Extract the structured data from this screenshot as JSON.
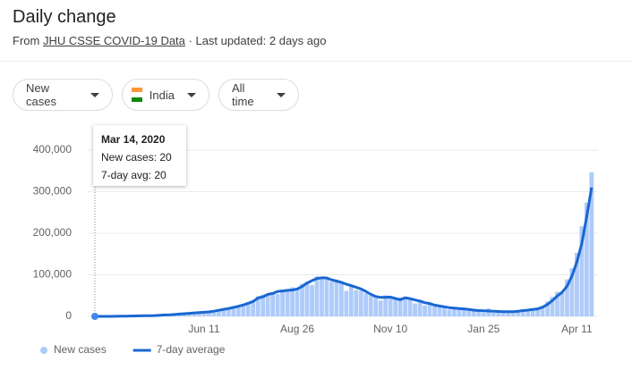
{
  "header": {
    "title": "Daily change",
    "source_prefix": "From",
    "source_link": "JHU CSSE COVID-19 Data",
    "source_suffix": "· Last updated: 2 days ago"
  },
  "controls": [
    "New cases",
    "India",
    "All time"
  ],
  "chart_data": {
    "type": "combo",
    "categories": [
      null,
      null,
      null,
      null,
      null,
      null,
      null,
      null,
      null,
      null,
      null,
      null,
      null,
      null,
      null,
      null,
      null,
      null,
      null,
      null,
      null,
      null,
      "Jun 11",
      null,
      null,
      null,
      null,
      null,
      null,
      null,
      null,
      null,
      null,
      null,
      null,
      null,
      null,
      null,
      null,
      null,
      null,
      "Aug 26",
      null,
      null,
      null,
      null,
      null,
      null,
      null,
      null,
      null,
      null,
      null,
      null,
      null,
      null,
      null,
      null,
      null,
      null,
      "Nov 10",
      null,
      null,
      null,
      null,
      null,
      null,
      null,
      null,
      null,
      null,
      null,
      null,
      null,
      null,
      null,
      null,
      null,
      null,
      "Jan 25",
      null,
      null,
      null,
      null,
      null,
      null,
      null,
      null,
      null,
      null,
      null,
      null,
      null,
      null,
      null,
      null,
      null,
      null,
      "Apr 11",
      null,
      null,
      null
    ],
    "series": [
      {
        "name": "New cases",
        "type": "bar",
        "color": "#aecbfa",
        "values": [
          27,
          40,
          100,
          140,
          250,
          600,
          550,
          900,
          1000,
          1500,
          1700,
          1600,
          2400,
          3000,
          4200,
          3700,
          5200,
          6000,
          6500,
          7800,
          9300,
          10000,
          11000,
          11500,
          13600,
          15900,
          19000,
          18600,
          24000,
          25600,
          28500,
          34900,
          37700,
          48600,
          52000,
          52900,
          56300,
          53600,
          64600,
          64500,
          69900,
          67100,
          78700,
          83900,
          75800,
          96600,
          90100,
          93300,
          83300,
          88600,
          81500,
          61300,
          73300,
          63500,
          62200,
          55800,
          50100,
          48600,
          38300,
          50400,
          44300,
          41100,
          45600,
          44100,
          43100,
          31100,
          36600,
          26600,
          30300,
          24000,
          26600,
          23100,
          16400,
          19100,
          18100,
          18600,
          16900,
          13800,
          14500,
          9100,
          18900,
          8600,
          12000,
          12900,
          12200,
          12900,
          10600,
          16500,
          12300,
          18300,
          17900,
          25300,
          35900,
          46900,
          59100,
          56200,
          89100,
          115700,
          152900,
          217300,
          273800,
          346800
        ]
      },
      {
        "name": "7-day average",
        "type": "line",
        "color": "#1967d2",
        "values": [
          20,
          30,
          70,
          100,
          180,
          400,
          600,
          800,
          1000,
          1300,
          1500,
          1600,
          2000,
          2800,
          3400,
          3700,
          4500,
          5600,
          6400,
          7400,
          8400,
          9300,
          10000,
          10800,
          12500,
          14600,
          17000,
          19000,
          21500,
          24300,
          27500,
          31500,
          36000,
          44000,
          47000,
          53000,
          55000,
          60000,
          61000,
          62500,
          63500,
          66000,
          72000,
          80000,
          86000,
          91000,
          93000,
          92500,
          88000,
          85000,
          82000,
          77500,
          74000,
          70000,
          66000,
          60000,
          53000,
          48000,
          45500,
          46000,
          46500,
          43000,
          40000,
          45000,
          42500,
          39500,
          37000,
          33000,
          31000,
          27000,
          25000,
          23000,
          21000,
          20000,
          19000,
          18000,
          16500,
          15000,
          14000,
          13500,
          13000,
          12500,
          11800,
          11300,
          11200,
          11500,
          12300,
          14000,
          15000,
          16500,
          18000,
          22000,
          28500,
          38000,
          49000,
          58000,
          73000,
          97000,
          131000,
          175000,
          240000,
          310000
        ]
      }
    ],
    "ylim": [
      0,
      400000
    ],
    "yticks": [
      {
        "value": 0,
        "label": "0"
      },
      {
        "value": 100000,
        "label": "100,000"
      },
      {
        "value": 200000,
        "label": "200,000"
      },
      {
        "value": 300000,
        "label": "300,000"
      },
      {
        "value": 400000,
        "label": "400,000"
      }
    ],
    "grid": true,
    "tooltip": {
      "title": "Mar 14, 2020",
      "lines": [
        "New cases: 20",
        "7-day avg: 20"
      ]
    }
  }
}
